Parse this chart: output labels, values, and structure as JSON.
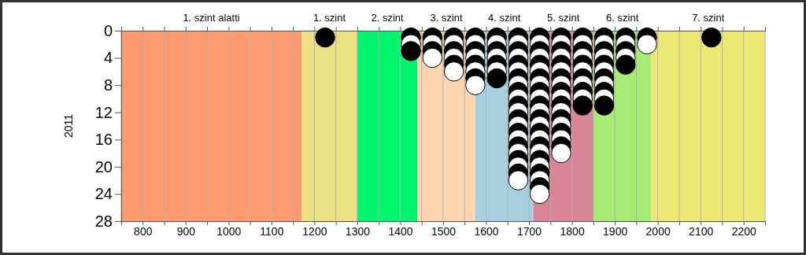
{
  "chart_data": {
    "type": "scatter",
    "ylabel": "2011",
    "xlim": [
      750,
      2250
    ],
    "ylim": [
      28,
      0
    ],
    "xticks": [
      {
        "value": 750,
        "label": null
      },
      800,
      {
        "value": 850,
        "label": null
      },
      900,
      {
        "value": 950,
        "label": null
      },
      1000,
      {
        "value": 1050,
        "label": null
      },
      1100,
      {
        "value": 1150,
        "label": null
      },
      1200,
      {
        "value": 1250,
        "label": null
      },
      1300,
      {
        "value": 1350,
        "label": null
      },
      1400,
      {
        "value": 1450,
        "label": null
      },
      1500,
      {
        "value": 1550,
        "label": null
      },
      1600,
      {
        "value": 1650,
        "label": null
      },
      1700,
      {
        "value": 1750,
        "label": null
      },
      1800,
      {
        "value": 1850,
        "label": null
      },
      1900,
      {
        "value": 1950,
        "label": null
      },
      2000,
      {
        "value": 2050,
        "label": null
      },
      2100,
      {
        "value": 2150,
        "label": null
      },
      2200,
      {
        "value": 2250,
        "label": null
      }
    ],
    "yticks": [
      0,
      4,
      8,
      12,
      16,
      20,
      24,
      28
    ],
    "grid": "x",
    "marker": "circle",
    "bands": [
      {
        "axis": "x",
        "from": 750,
        "to": 1170,
        "label": "1. szint alatti",
        "color": "#fe9a6e"
      },
      {
        "axis": "x",
        "from": 1170,
        "to": 1300,
        "label": "1. szint",
        "color": "#ebe183"
      },
      {
        "axis": "x",
        "from": 1300,
        "to": 1440,
        "label": "2. szint",
        "color": "#00f56d"
      },
      {
        "axis": "x",
        "from": 1440,
        "to": 1575,
        "label": "3. szint",
        "color": "#fcd5b0"
      },
      {
        "axis": "x",
        "from": 1575,
        "to": 1710,
        "label": "4. szint",
        "color": "#a6d0e0"
      },
      {
        "axis": "x",
        "from": 1710,
        "to": 1850,
        "label": "5. szint",
        "color": "#d98497"
      },
      {
        "axis": "x",
        "from": 1850,
        "to": 1985,
        "label": "6. szint",
        "color": "#a6ec74"
      },
      {
        "axis": "x",
        "from": 1985,
        "to": 2250,
        "label": "7. szint",
        "color": "#ece874"
      }
    ],
    "series": [
      {
        "x": [
          1225,
          1425,
          1425,
          1425,
          1475,
          1475,
          1475,
          1475,
          1525,
          1525,
          1525,
          1525,
          1525,
          1525,
          1575,
          1575,
          1575,
          1575,
          1575,
          1575,
          1575,
          1575,
          1625,
          1625,
          1625,
          1625,
          1625,
          1625,
          1625,
          1675,
          1675,
          1675,
          1675,
          1675,
          1675,
          1675,
          1675,
          1675,
          1675,
          1675,
          1675,
          1675,
          1675,
          1675,
          1675,
          1675,
          1675,
          1675,
          1675,
          1675,
          1675,
          1725,
          1725,
          1725,
          1725,
          1725,
          1725,
          1725,
          1725,
          1725,
          1725,
          1725,
          1725,
          1725,
          1725,
          1725,
          1725,
          1725,
          1725,
          1725,
          1725,
          1725,
          1725,
          1725,
          1725,
          1775,
          1775,
          1775,
          1775,
          1775,
          1775,
          1775,
          1775,
          1775,
          1775,
          1775,
          1775,
          1775,
          1775,
          1775,
          1775,
          1775,
          1775,
          1825,
          1825,
          1825,
          1825,
          1825,
          1825,
          1825,
          1825,
          1825,
          1825,
          1825,
          1875,
          1875,
          1875,
          1875,
          1875,
          1875,
          1875,
          1875,
          1875,
          1875,
          1875,
          1925,
          1925,
          1925,
          1925,
          1925,
          1975,
          1975,
          2125
        ],
        "values": [
          1,
          1,
          2,
          3,
          1,
          2,
          3,
          4,
          1,
          2,
          3,
          4,
          5,
          6,
          1,
          2,
          3,
          4,
          5,
          6,
          7,
          8,
          1,
          2,
          3,
          4,
          5,
          6,
          7,
          1,
          2,
          3,
          4,
          5,
          6,
          7,
          8,
          9,
          10,
          11,
          12,
          13,
          14,
          15,
          16,
          17,
          18,
          19,
          20,
          21,
          22,
          1,
          2,
          3,
          4,
          5,
          6,
          7,
          8,
          9,
          10,
          11,
          12,
          13,
          14,
          15,
          16,
          17,
          18,
          19,
          20,
          21,
          22,
          23,
          24,
          1,
          2,
          3,
          4,
          5,
          6,
          7,
          8,
          9,
          10,
          11,
          12,
          13,
          14,
          15,
          16,
          17,
          18,
          1,
          2,
          3,
          4,
          5,
          6,
          7,
          8,
          9,
          10,
          11,
          1,
          2,
          3,
          4,
          5,
          6,
          7,
          8,
          9,
          10,
          11,
          1,
          2,
          3,
          4,
          5,
          1,
          2,
          1
        ],
        "colors": [
          "#000000",
          "#000000",
          "#ffffff",
          "#000000",
          "#000000",
          "#ffffff",
          "#000000",
          "#ffffff",
          "#000000",
          "#ffffff",
          "#000000",
          "#ffffff",
          "#000000",
          "#ffffff",
          "#000000",
          "#ffffff",
          "#000000",
          "#ffffff",
          "#000000",
          "#ffffff",
          "#000000",
          "#ffffff",
          "#000000",
          "#ffffff",
          "#000000",
          "#ffffff",
          "#000000",
          "#ffffff",
          "#000000",
          "#000000",
          "#ffffff",
          "#000000",
          "#ffffff",
          "#000000",
          "#ffffff",
          "#000000",
          "#ffffff",
          "#000000",
          "#ffffff",
          "#000000",
          "#ffffff",
          "#000000",
          "#ffffff",
          "#000000",
          "#ffffff",
          "#000000",
          "#ffffff",
          "#000000",
          "#ffffff",
          "#000000",
          "#ffffff",
          "#000000",
          "#ffffff",
          "#000000",
          "#ffffff",
          "#000000",
          "#ffffff",
          "#000000",
          "#ffffff",
          "#000000",
          "#ffffff",
          "#000000",
          "#ffffff",
          "#000000",
          "#ffffff",
          "#000000",
          "#ffffff",
          "#000000",
          "#ffffff",
          "#000000",
          "#ffffff",
          "#000000",
          "#ffffff",
          "#000000",
          "#ffffff",
          "#000000",
          "#ffffff",
          "#000000",
          "#ffffff",
          "#000000",
          "#ffffff",
          "#000000",
          "#ffffff",
          "#000000",
          "#ffffff",
          "#000000",
          "#ffffff",
          "#000000",
          "#ffffff",
          "#000000",
          "#ffffff",
          "#000000",
          "#ffffff",
          "#000000",
          "#ffffff",
          "#000000",
          "#ffffff",
          "#000000",
          "#ffffff",
          "#000000",
          "#ffffff",
          "#000000",
          "#ffffff",
          "#000000",
          "#000000",
          "#ffffff",
          "#000000",
          "#ffffff",
          "#000000",
          "#ffffff",
          "#000000",
          "#ffffff",
          "#000000",
          "#ffffff",
          "#000000",
          "#000000",
          "#ffffff",
          "#000000",
          "#ffffff",
          "#000000",
          "#000000",
          "#ffffff",
          "#000000"
        ]
      }
    ]
  }
}
